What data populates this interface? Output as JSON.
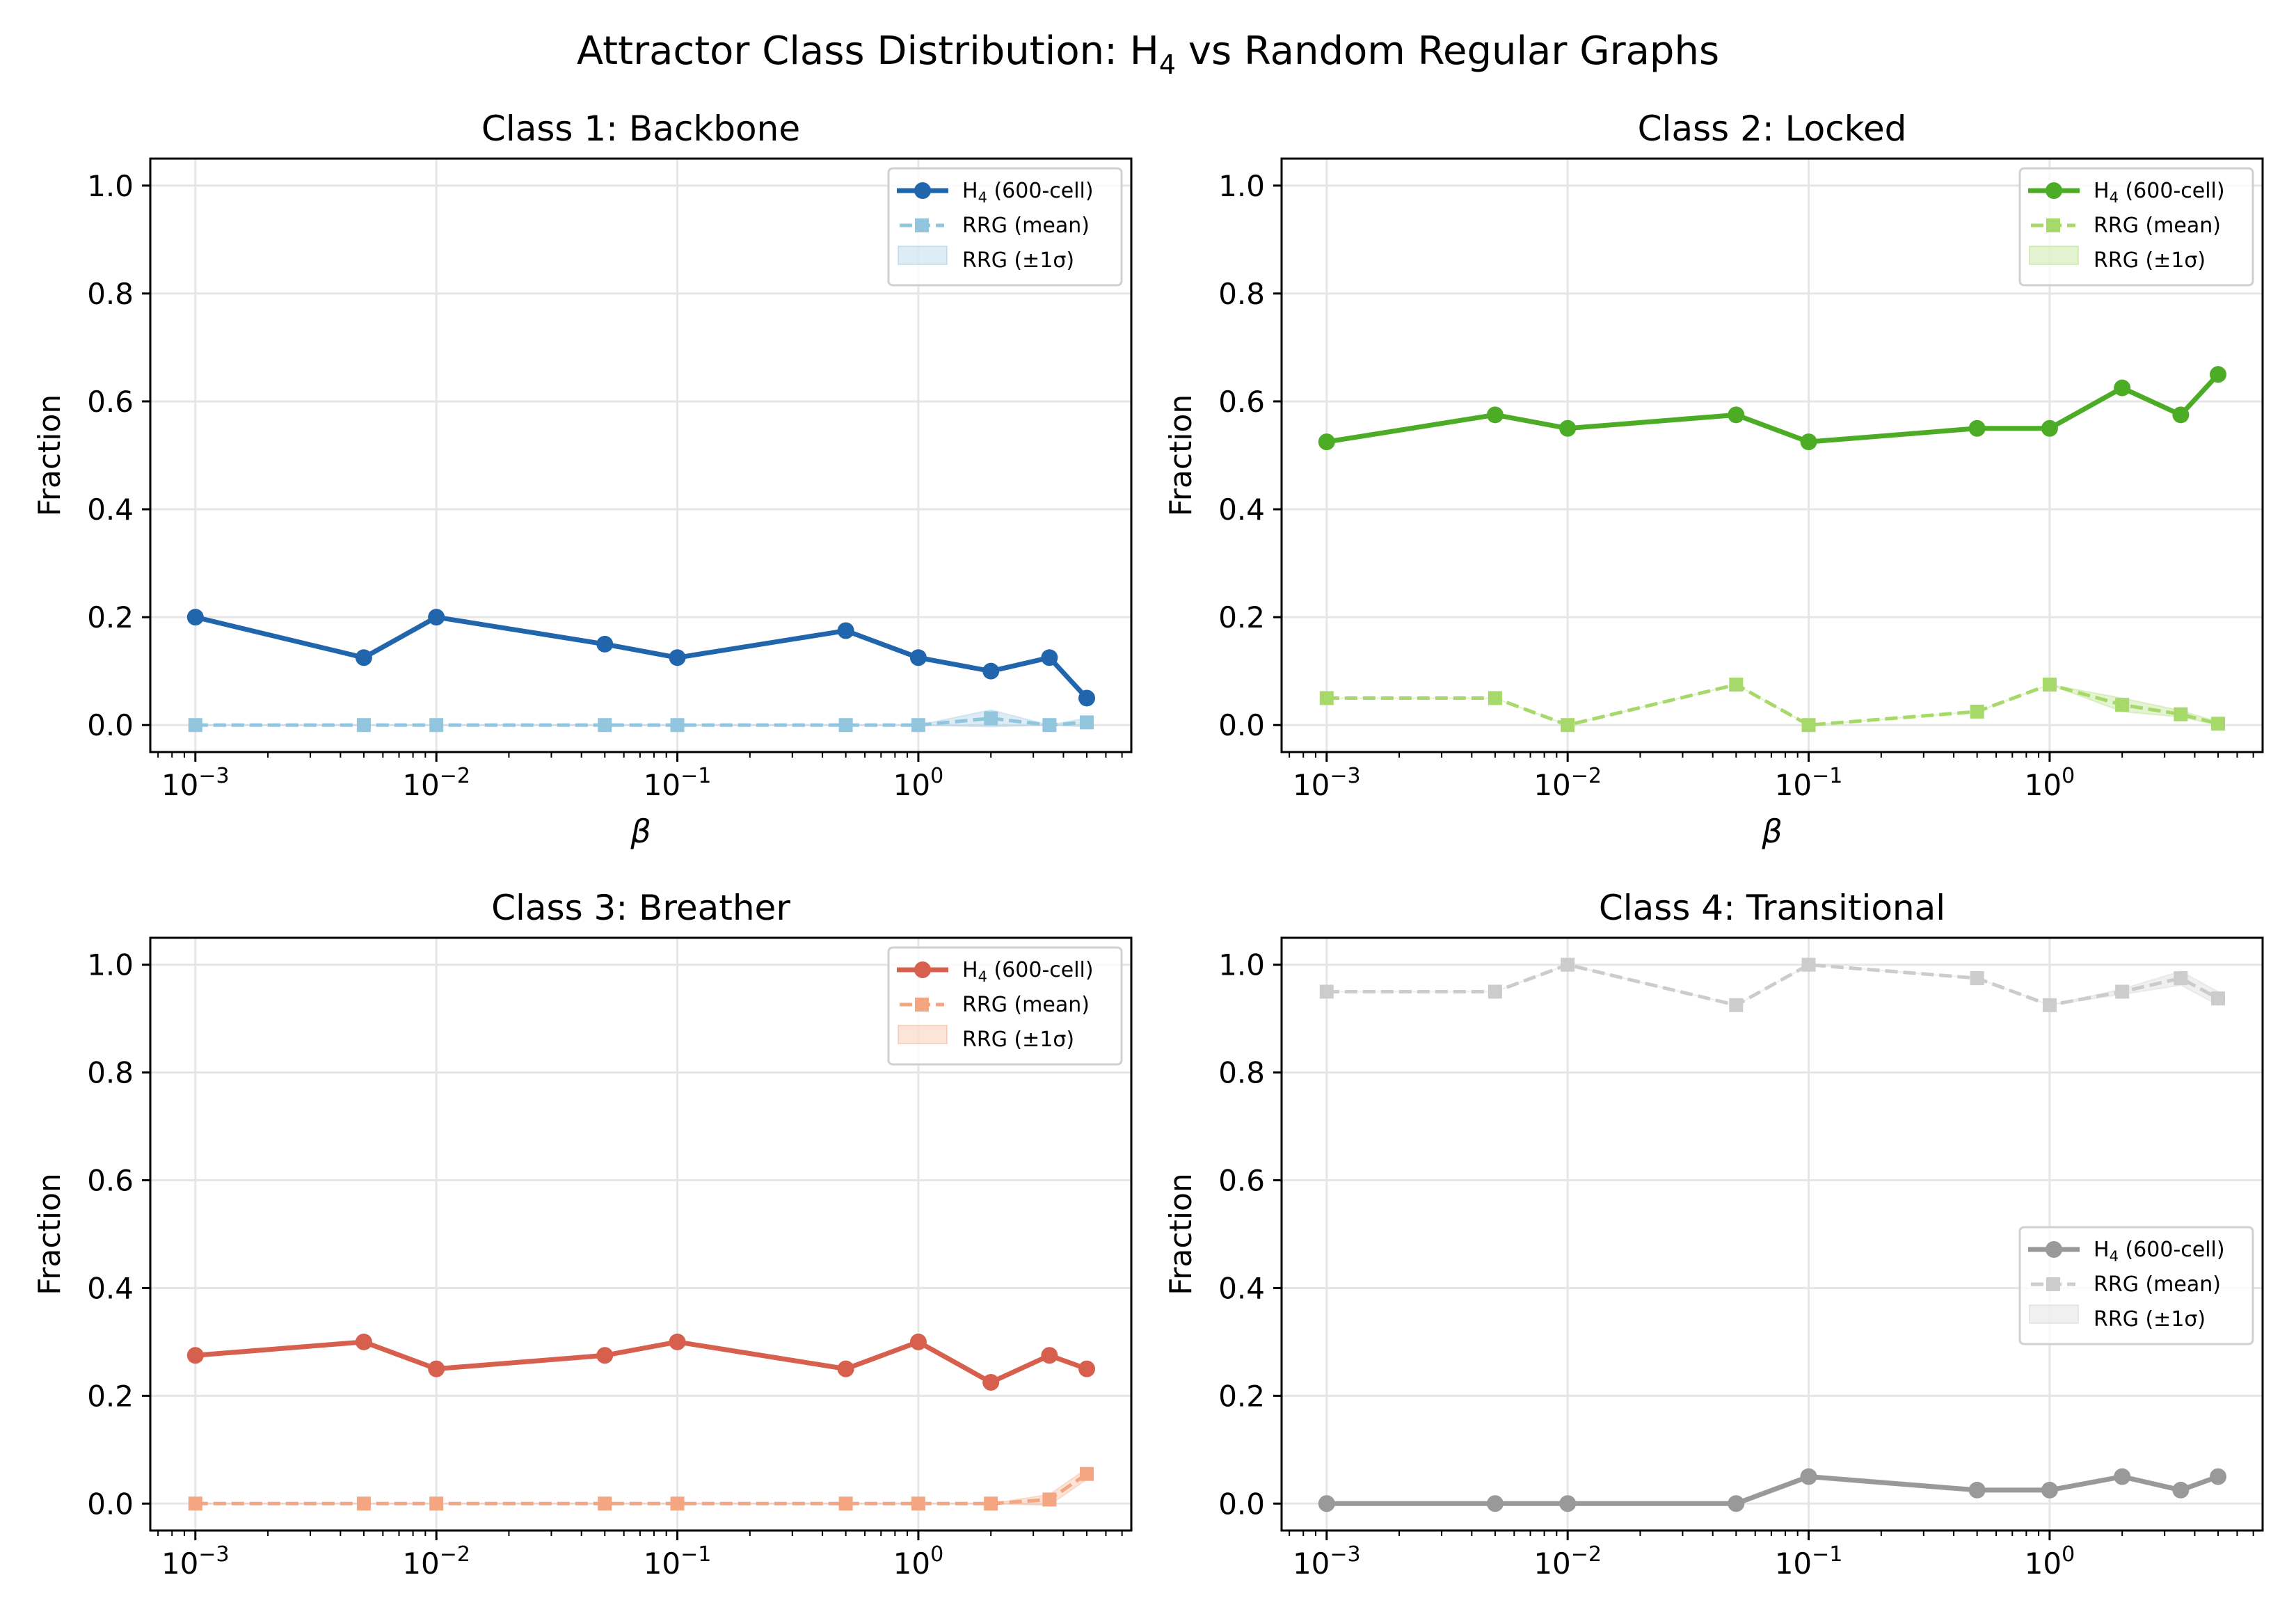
{
  "figure": {
    "suptitle_main": "Attractor Class Distribution: H",
    "suptitle_sub": "4",
    "suptitle_rest": " vs Random Regular Graphs"
  },
  "legend_labels": {
    "h4_main": "H",
    "h4_sub": "4",
    "h4_rest": " (600-cell)",
    "rrg_mean": "RRG (mean)",
    "rrg_band": "RRG (±1σ)"
  },
  "axis_labels": {
    "ylabel": "Fraction",
    "xlabel": "β"
  },
  "chart_data": [
    {
      "type": "line",
      "title": "Class 1: Backbone",
      "xlabel": "β",
      "ylabel": "Fraction",
      "xscale": "log",
      "xlim": [
        0.00065,
        7.65
      ],
      "ylim": [
        -0.05,
        1.05
      ],
      "grid": true,
      "legend_position": "upper right",
      "x": [
        0.001,
        0.005,
        0.01,
        0.05,
        0.1,
        0.5,
        1,
        2,
        3.5,
        5
      ],
      "xticks": [
        "10^-3",
        "10^-2",
        "10^-1",
        "10^0"
      ],
      "yticks": [
        "0.0",
        "0.2",
        "0.4",
        "0.6",
        "0.8",
        "1.0"
      ],
      "colors": {
        "h4": "#2166ac",
        "rrg": "#92c5de",
        "band": "#92c5de"
      },
      "series": [
        {
          "name": "H4 (600-cell)",
          "values": [
            0.2,
            0.125,
            0.2,
            0.15,
            0.125,
            0.175,
            0.125,
            0.1,
            0.125,
            0.05
          ]
        },
        {
          "name": "RRG (mean)",
          "values": [
            0,
            0,
            0,
            0,
            0,
            0,
            0,
            0.0125,
            0,
            0.005
          ]
        },
        {
          "name": "RRG (±1σ)",
          "lower": [
            0,
            0,
            0,
            0,
            0,
            0,
            0,
            -0.003,
            0,
            -0.003
          ],
          "upper": [
            0,
            0,
            0,
            0,
            0,
            0,
            0,
            0.028,
            0,
            0.013
          ]
        }
      ]
    },
    {
      "type": "line",
      "title": "Class 2: Locked",
      "xlabel": "β",
      "ylabel": "Fraction",
      "xscale": "log",
      "xlim": [
        0.00065,
        7.65
      ],
      "ylim": [
        -0.05,
        1.05
      ],
      "grid": true,
      "legend_position": "upper right",
      "x": [
        0.001,
        0.005,
        0.01,
        0.05,
        0.1,
        0.5,
        1,
        2,
        3.5,
        5
      ],
      "xticks": [
        "10^-3",
        "10^-2",
        "10^-1",
        "10^0"
      ],
      "yticks": [
        "0.0",
        "0.2",
        "0.4",
        "0.6",
        "0.8",
        "1.0"
      ],
      "colors": {
        "h4": "#4dac26",
        "rrg": "#a6d96a",
        "band": "#a6d96a"
      },
      "series": [
        {
          "name": "H4 (600-cell)",
          "values": [
            0.525,
            0.575,
            0.55,
            0.575,
            0.525,
            0.55,
            0.55,
            0.625,
            0.575,
            0.65
          ]
        },
        {
          "name": "RRG (mean)",
          "values": [
            0.05,
            0.05,
            0,
            0.075,
            0,
            0.025,
            0.075,
            0.0375,
            0.02,
            0.0025
          ]
        },
        {
          "name": "RRG (±1σ)",
          "lower": [
            0.05,
            0.05,
            0,
            0.075,
            0,
            0.025,
            0.075,
            0.025,
            0.015,
            0
          ],
          "upper": [
            0.05,
            0.05,
            0,
            0.075,
            0,
            0.025,
            0.075,
            0.05,
            0.027,
            0.006
          ]
        }
      ]
    },
    {
      "type": "line",
      "title": "Class 3: Breather",
      "xlabel": "β",
      "ylabel": "Fraction",
      "xscale": "log",
      "xlim": [
        0.00065,
        7.65
      ],
      "ylim": [
        -0.05,
        1.05
      ],
      "grid": true,
      "legend_position": "upper right",
      "x": [
        0.001,
        0.005,
        0.01,
        0.05,
        0.1,
        0.5,
        1,
        2,
        3.5,
        5
      ],
      "xticks": [
        "10^-3",
        "10^-2",
        "10^-1",
        "10^0"
      ],
      "yticks": [
        "0.0",
        "0.2",
        "0.4",
        "0.6",
        "0.8",
        "1.0"
      ],
      "colors": {
        "h4": "#d6604d",
        "rrg": "#f4a582",
        "band": "#f4a582"
      },
      "series": [
        {
          "name": "H4 (600-cell)",
          "values": [
            0.275,
            0.3,
            0.25,
            0.275,
            0.3,
            0.25,
            0.3,
            0.225,
            0.275,
            0.25
          ]
        },
        {
          "name": "RRG (mean)",
          "values": [
            0,
            0,
            0,
            0,
            0,
            0,
            0,
            0,
            0.0075,
            0.055
          ]
        },
        {
          "name": "RRG (±1σ)",
          "lower": [
            0,
            0,
            0,
            0,
            0,
            0,
            0,
            0,
            -0.003,
            0.045
          ],
          "upper": [
            0,
            0,
            0,
            0,
            0,
            0,
            0,
            0,
            0.017,
            0.065
          ]
        }
      ]
    },
    {
      "type": "line",
      "title": "Class 4: Transitional",
      "xlabel": "β",
      "ylabel": "Fraction",
      "xscale": "log",
      "xlim": [
        0.00065,
        7.65
      ],
      "ylim": [
        -0.05,
        1.05
      ],
      "grid": true,
      "legend_position": "center right",
      "x": [
        0.001,
        0.005,
        0.01,
        0.05,
        0.1,
        0.5,
        1,
        2,
        3.5,
        5
      ],
      "xticks": [
        "10^-3",
        "10^-2",
        "10^-1",
        "10^0"
      ],
      "yticks": [
        "0.0",
        "0.2",
        "0.4",
        "0.6",
        "0.8",
        "1.0"
      ],
      "colors": {
        "h4": "#999999",
        "rrg": "#cccccc",
        "band": "#cccccc"
      },
      "series": [
        {
          "name": "H4 (600-cell)",
          "values": [
            0,
            0,
            0,
            0,
            0.05,
            0.025,
            0.025,
            0.05,
            0.025,
            0.05
          ]
        },
        {
          "name": "RRG (mean)",
          "values": [
            0.95,
            0.95,
            1.0,
            0.925,
            1.0,
            0.975,
            0.925,
            0.95,
            0.975,
            0.9375
          ]
        },
        {
          "name": "RRG (±1σ)",
          "lower": [
            0.95,
            0.95,
            1.0,
            0.925,
            1.0,
            0.975,
            0.925,
            0.945,
            0.962,
            0.925
          ],
          "upper": [
            0.95,
            0.95,
            1.0,
            0.925,
            1.0,
            0.975,
            0.925,
            0.955,
            0.988,
            0.95
          ]
        }
      ]
    }
  ]
}
